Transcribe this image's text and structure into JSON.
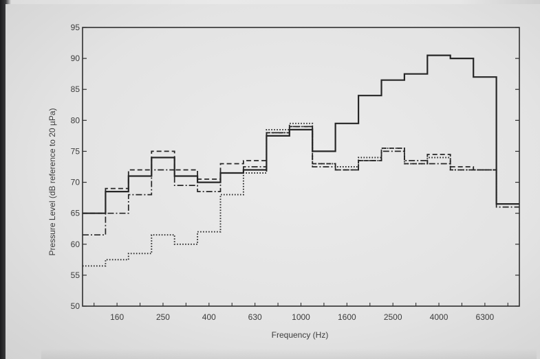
{
  "chart_data": {
    "type": "line",
    "style": "step",
    "xlabel": "Frequency (Hz)",
    "ylabel": "Pressure Level (dB reference to 20 µPa)",
    "ylim": [
      50,
      95
    ],
    "yticks": [
      50,
      55,
      60,
      65,
      70,
      75,
      80,
      85,
      90,
      95
    ],
    "x": [
      "125",
      "160",
      "200",
      "250",
      "315",
      "400",
      "500",
      "630",
      "800",
      "1000",
      "1250",
      "1600",
      "2000",
      "2500",
      "3150",
      "4000",
      "5000",
      "6300",
      "8000"
    ],
    "xtick_labels": [
      "160",
      "250",
      "400",
      "630",
      "1000",
      "1600",
      "2500",
      "4000",
      "6300"
    ],
    "grid": false,
    "series": [
      {
        "line_style": "solid",
        "values": [
          65.0,
          68.5,
          71.0,
          74.0,
          71.0,
          70.0,
          71.5,
          72.0,
          77.5,
          78.5,
          75.0,
          79.5,
          84.0,
          86.5,
          87.5,
          90.5,
          90.0,
          87.0,
          66.5
        ]
      },
      {
        "line_style": "dashed",
        "values": [
          65.0,
          69.0,
          72.0,
          75.0,
          72.0,
          70.5,
          73.0,
          73.5,
          78.0,
          79.0,
          73.0,
          72.0,
          73.5,
          75.5,
          73.0,
          74.5,
          72.5,
          72.0,
          66.5
        ]
      },
      {
        "line_style": "dash-dot",
        "values": [
          61.5,
          65.0,
          68.0,
          72.0,
          69.5,
          68.5,
          71.5,
          72.5,
          78.0,
          79.0,
          72.5,
          72.0,
          73.5,
          75.0,
          73.5,
          73.0,
          72.0,
          72.0,
          66.0
        ]
      },
      {
        "line_style": "dotted",
        "values": [
          56.5,
          57.5,
          58.5,
          61.5,
          60.0,
          62.0,
          68.0,
          71.5,
          78.5,
          79.5,
          73.0,
          72.5,
          74.0,
          75.5,
          73.0,
          74.0,
          72.0,
          72.0,
          66.5
        ]
      }
    ]
  }
}
